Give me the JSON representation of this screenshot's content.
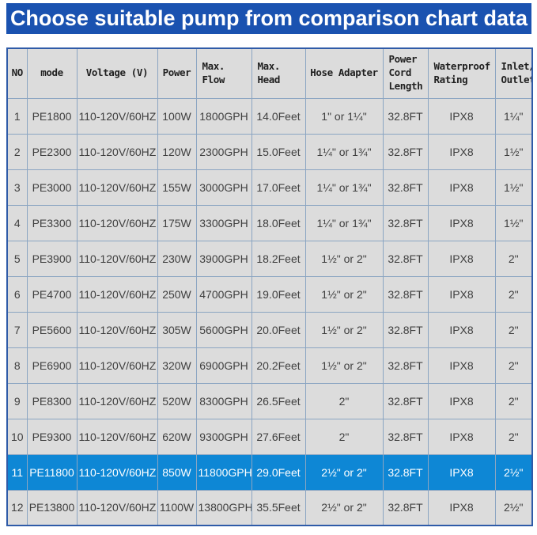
{
  "title_bar": {
    "text": "Choose suitable pump from comparison chart data"
  },
  "colors": {
    "title_bar": "#1a52b0",
    "title_text": "#ffffff",
    "highlight_row": "#0e87d5",
    "highlight_text": "#ffffff",
    "cell_bg": "#dcdcdc",
    "grid_line": "#8ba5c2",
    "outer_border": "#2f5ba8",
    "header_text": "#1f1f1f",
    "cell_text": "#3f3f3f"
  },
  "chart_data": {
    "type": "table",
    "title": "Choose suitable pump from comparison chart data",
    "columns": [
      "NO",
      "mode",
      "Voltage (V)",
      "Power",
      "Max. Flow",
      "Max. Head",
      "Hose Adapter",
      "Power Cord Length",
      "Waterproof Rating",
      "Inlet/ Outlet"
    ],
    "rows": [
      [
        "1",
        "PE1800",
        "110-120V/60HZ",
        "100W",
        "1800GPH",
        "14.0Feet",
        "1\" or 1¼\"",
        "32.8FT",
        "IPX8",
        "1¼\""
      ],
      [
        "2",
        "PE2300",
        "110-120V/60HZ",
        "120W",
        "2300GPH",
        "15.0Feet",
        "1¼\" or 1¾\"",
        "32.8FT",
        "IPX8",
        "1½\""
      ],
      [
        "3",
        "PE3000",
        "110-120V/60HZ",
        "155W",
        "3000GPH",
        "17.0Feet",
        "1¼\" or 1¾\"",
        "32.8FT",
        "IPX8",
        "1½\""
      ],
      [
        "4",
        "PE3300",
        "110-120V/60HZ",
        "175W",
        "3300GPH",
        "18.0Feet",
        "1¼\" or 1¾\"",
        "32.8FT",
        "IPX8",
        "1½\""
      ],
      [
        "5",
        "PE3900",
        "110-120V/60HZ",
        "230W",
        "3900GPH",
        "18.2Feet",
        "1½\" or 2\"",
        "32.8FT",
        "IPX8",
        "2\""
      ],
      [
        "6",
        "PE4700",
        "110-120V/60HZ",
        "250W",
        "4700GPH",
        "19.0Feet",
        "1½\" or 2\"",
        "32.8FT",
        "IPX8",
        "2\""
      ],
      [
        "7",
        "PE5600",
        "110-120V/60HZ",
        "305W",
        "5600GPH",
        "20.0Feet",
        "1½\" or 2\"",
        "32.8FT",
        "IPX8",
        "2\""
      ],
      [
        "8",
        "PE6900",
        "110-120V/60HZ",
        "320W",
        "6900GPH",
        "20.2Feet",
        "1½\" or 2\"",
        "32.8FT",
        "IPX8",
        "2\""
      ],
      [
        "9",
        "PE8300",
        "110-120V/60HZ",
        "520W",
        "8300GPH",
        "26.5Feet",
        "2\"",
        "32.8FT",
        "IPX8",
        "2\""
      ],
      [
        "10",
        "PE9300",
        "110-120V/60HZ",
        "620W",
        "9300GPH",
        "27.6Feet",
        "2\"",
        "32.8FT",
        "IPX8",
        "2\""
      ],
      [
        "11",
        "PE11800",
        "110-120V/60HZ",
        "850W",
        "11800GPH",
        "29.0Feet",
        "2½\" or 2\"",
        "32.8FT",
        "IPX8",
        "2½\""
      ],
      [
        "12",
        "PE13800",
        "110-120V/60HZ",
        "1100W",
        "13800GPH",
        "35.5Feet",
        "2½\" or 2\"",
        "32.8FT",
        "IPX8",
        "2½\""
      ]
    ],
    "highlighted_row_index": 10,
    "layout_hints": {
      "grid": true,
      "header_row": true,
      "highlight_style": "full-row blue background with white text"
    }
  }
}
